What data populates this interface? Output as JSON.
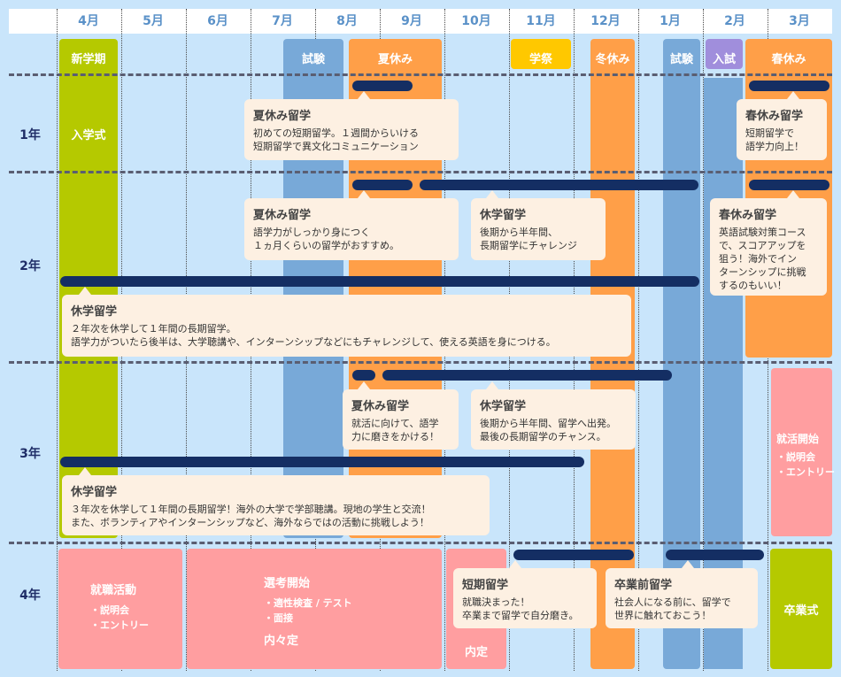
{
  "months": [
    "4月",
    "5月",
    "6月",
    "7月",
    "8月",
    "9月",
    "10月",
    "11月",
    "12月",
    "1月",
    "2月",
    "3月"
  ],
  "years": [
    "1年",
    "2年",
    "3年",
    "4年"
  ],
  "events": {
    "new_term": "新学期",
    "exam1": "試験",
    "summer": "夏休み",
    "festival": "学祭",
    "winter": "冬休み",
    "exam2": "試験",
    "entrance": "入試",
    "spring": "春休み",
    "entrance_ceremony": "入学式",
    "graduation": "卒業式"
  },
  "cards": {
    "y1_summer": {
      "title": "夏休み留学",
      "body": "初めての短期留学。１週間からいける\n短期留学で異文化コミュニケーション"
    },
    "y1_spring": {
      "title": "春休み留学",
      "body": "短期留学で\n語学力向上！"
    },
    "y2_summer": {
      "title": "夏休み留学",
      "body": "語学力がしっかり身につく\n１ヵ月くらいの留学がおすすめ。"
    },
    "y2_leave": {
      "title": "休学留学",
      "body": "後期から半年間、\n長期留学にチャレンジ"
    },
    "y2_spring": {
      "title": "春休み留学",
      "body": "英語試験対策コース\nで、スコアアップを\n狙う！海外でイン\nターンシップに挑戦\nするのもいい！"
    },
    "y2_year": {
      "title": "休学留学",
      "body": "２年次を休学して１年間の長期留学。\n語学力がついたら後半は、大学聴講や、インターンシップなどにもチャレンジして、使える英語を身につける。"
    },
    "y3_summer": {
      "title": "夏休み留学",
      "body": "就活に向けて、語学\n力に磨きをかける！"
    },
    "y3_leave": {
      "title": "休学留学",
      "body": "後期から半年間、留学へ出発。\n最後の長期留学のチャンス。"
    },
    "y3_year": {
      "title": "休学留学",
      "body": "３年次を休学して１年間の長期留学！海外の大学で学部聴講。現地の学生と交流！\nまた、ボランティアやインターンシップなど、海外ならではの活動に挑戦しよう！"
    },
    "y4_short": {
      "title": "短期留学",
      "body": "就職決まった！\n卒業まで留学で自分磨き。"
    },
    "y4_pre": {
      "title": "卒業前留学",
      "body": "社会人になる前に、留学で\n世界に触れておこう！"
    }
  },
  "job": {
    "y3_title": "就活開始",
    "y3_items": [
      "・説明会",
      "・エントリー"
    ],
    "y4_title": "就職活動",
    "y4_items": [
      "・説明会",
      "・エントリー"
    ],
    "select_title": "選考開始",
    "select_items": [
      "・適性検査 / テスト",
      "・面接"
    ],
    "naiteiki": "内々定",
    "naitei": "内定"
  },
  "colors": {
    "background": "#c9e5fb",
    "green": "#b5c900",
    "blue": "#78a9d8",
    "orange": "#ff9f48",
    "yellow": "#ffc800",
    "purple": "#a08edc",
    "pink": "#ff9ea0",
    "navy": "#142e63",
    "card": "#fdf0e2"
  }
}
